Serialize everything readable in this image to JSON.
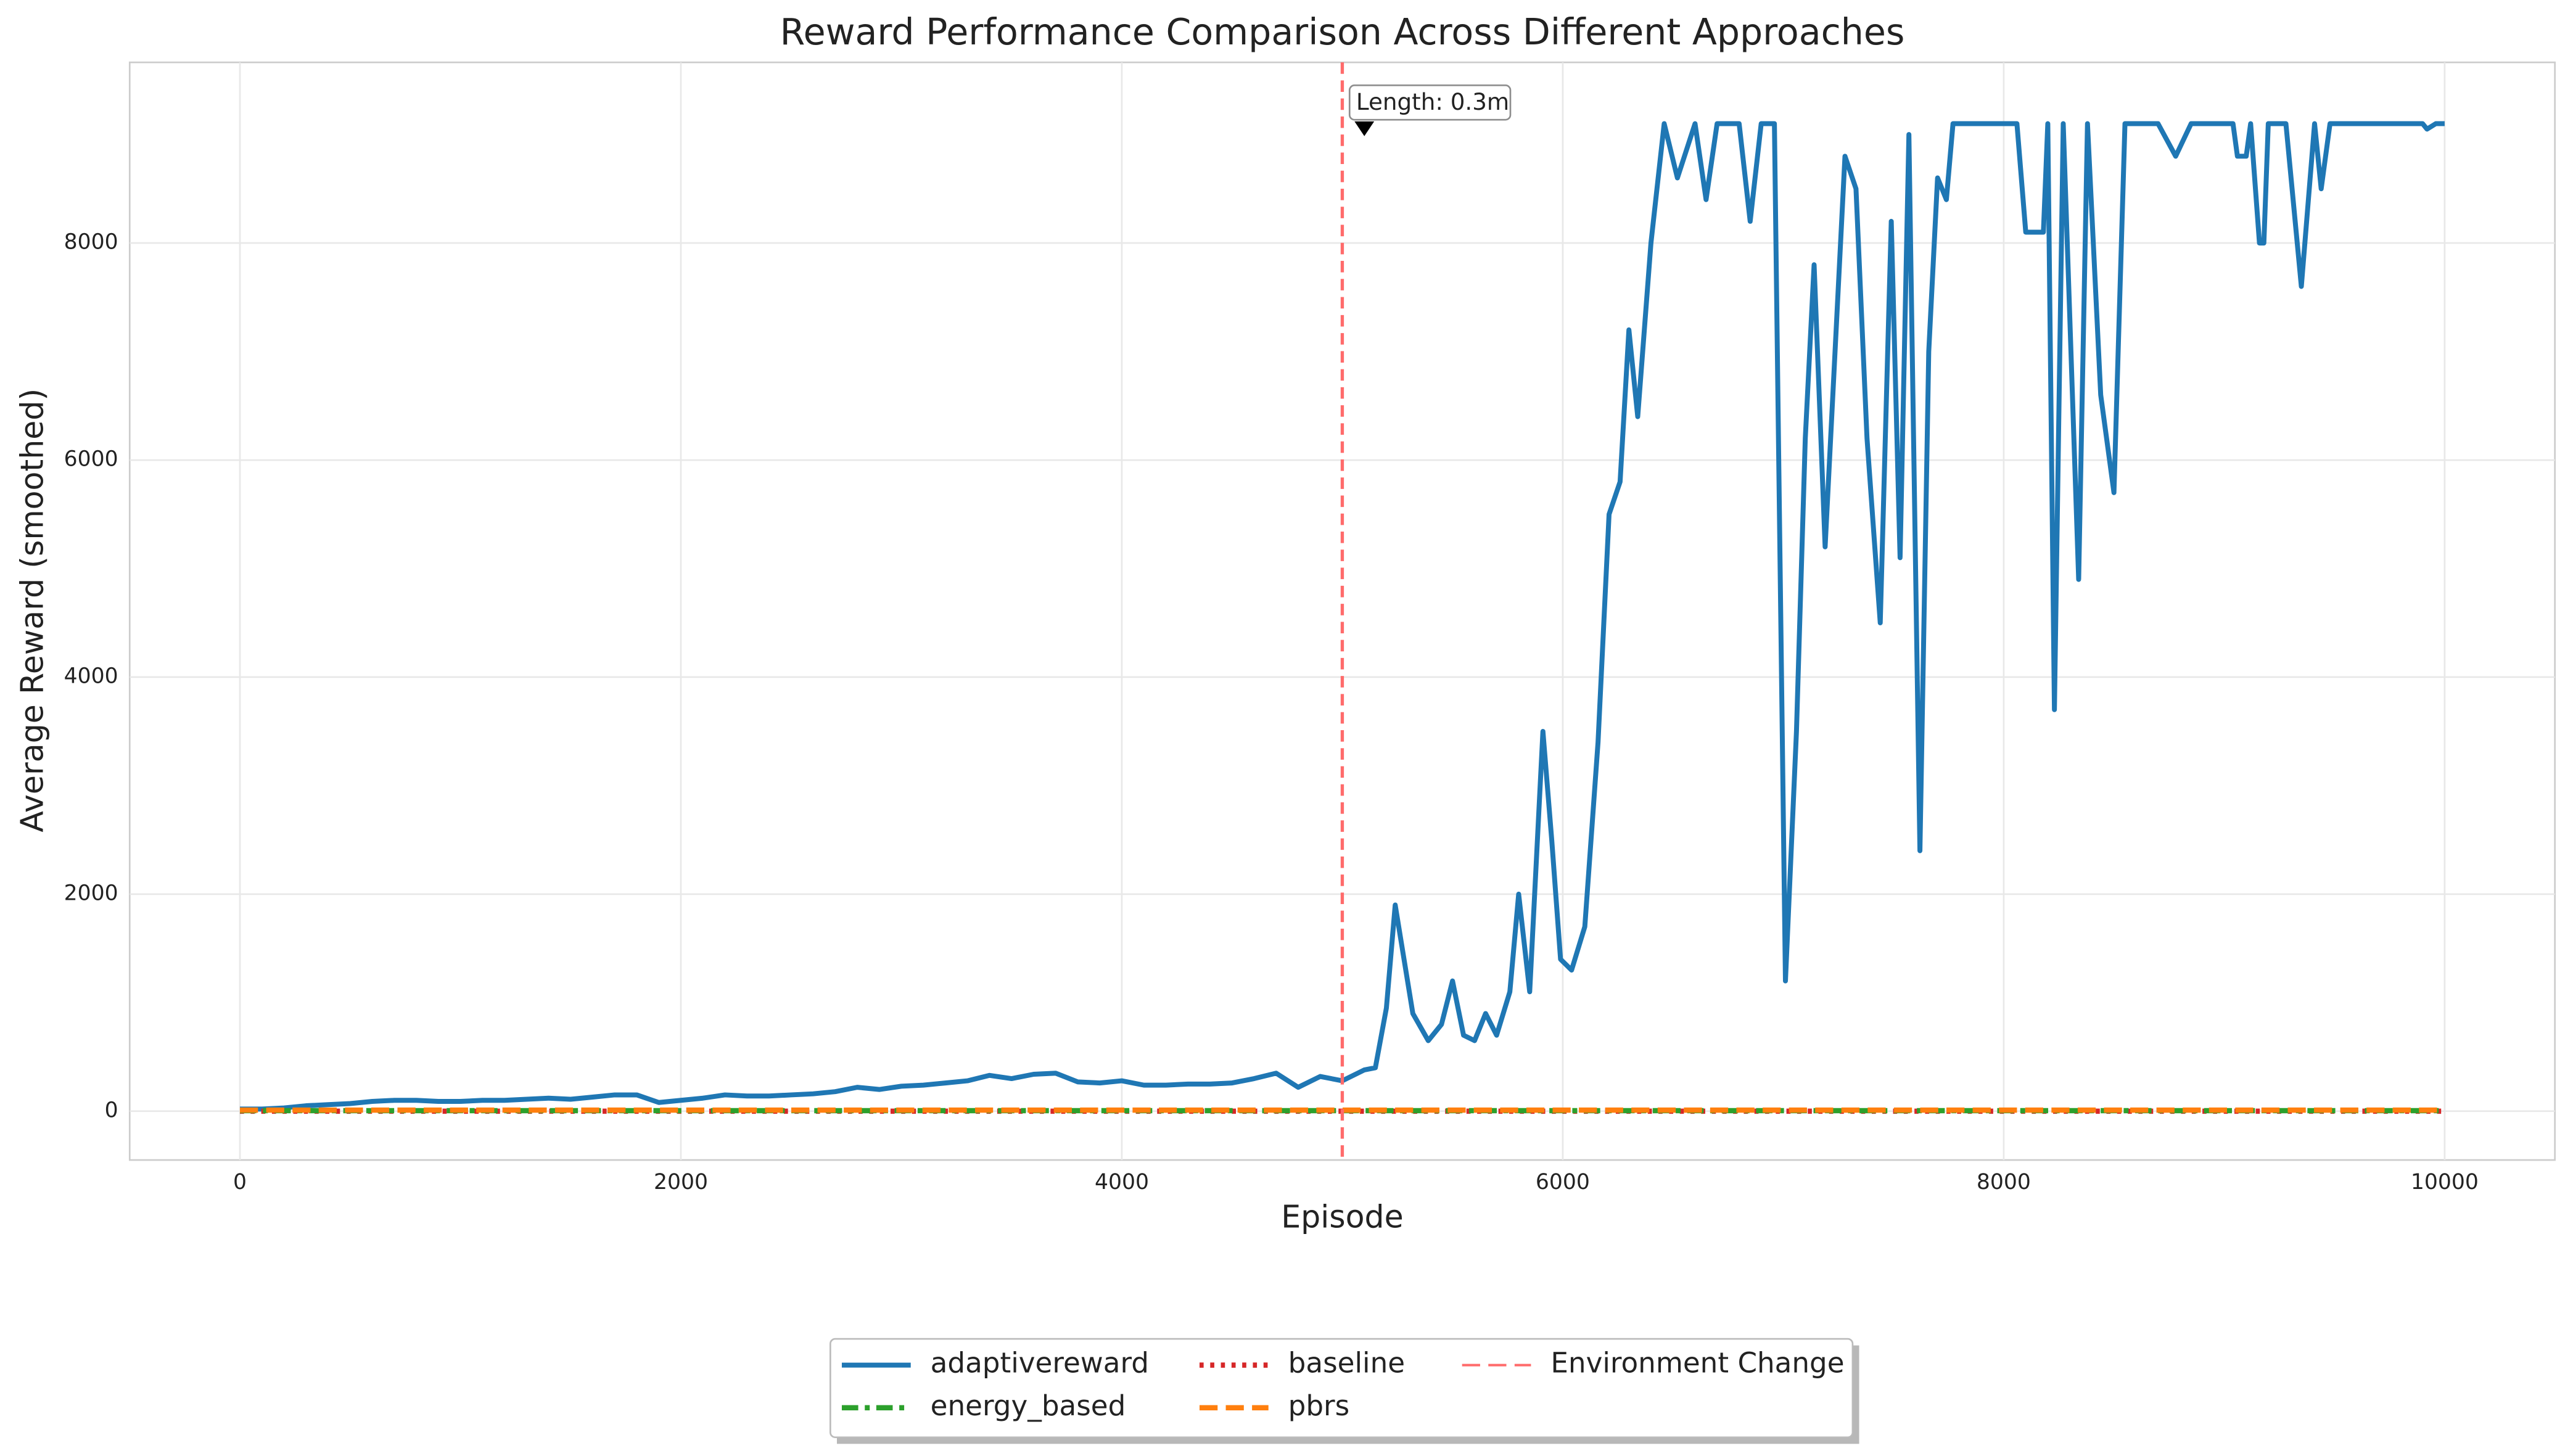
{
  "chart_data": {
    "type": "line",
    "title": "Reward Performance Comparison Across Different Approaches",
    "x_label": "Episode",
    "y_label": "Average Reward (smoothed)",
    "xlim": [
      -500,
      10500
    ],
    "ylim": [
      -450,
      9665
    ],
    "xticks": [
      0,
      2000,
      4000,
      6000,
      8000,
      10000
    ],
    "yticks": [
      0,
      2000,
      4000,
      6000,
      8000
    ],
    "grid": true,
    "legend": "lower center",
    "series": [
      {
        "name": "adaptivereward",
        "color": "#1f77b4",
        "linestyle": "solid",
        "x": [
          0,
          100,
          200,
          300,
          400,
          500,
          600,
          700,
          800,
          900,
          1000,
          1100,
          1200,
          1300,
          1400,
          1500,
          1600,
          1700,
          1800,
          1900,
          2000,
          2100,
          2200,
          2300,
          2400,
          2500,
          2600,
          2700,
          2800,
          2900,
          3000,
          3100,
          3200,
          3300,
          3400,
          3500,
          3600,
          3700,
          3800,
          3900,
          4000,
          4100,
          4200,
          4300,
          4400,
          4500,
          4600,
          4700,
          4800,
          4900,
          5000,
          5100,
          5150,
          5200,
          5240,
          5280,
          5320,
          5390,
          5450,
          5500,
          5550,
          5600,
          5650,
          5700,
          5760,
          5800,
          5850,
          5910,
          5950,
          5990,
          6040,
          6100,
          6160,
          6210,
          6260,
          6300,
          6340,
          6400,
          6460,
          6520,
          6600,
          6650,
          6700,
          6800,
          6850,
          6900,
          6960,
          7010,
          7060,
          7100,
          7140,
          7190,
          7240,
          7280,
          7330,
          7380,
          7440,
          7490,
          7530,
          7570,
          7620,
          7660,
          7700,
          7740,
          7770,
          8060,
          8100,
          8180,
          8200,
          8230,
          8270,
          8340,
          8380,
          8440,
          8500,
          8550,
          8700,
          8780,
          8850,
          9040,
          9060,
          9100,
          9120,
          9160,
          9180,
          9200,
          9280,
          9350,
          9410,
          9440,
          9480,
          9900,
          9920,
          9960,
          10000
        ],
        "values": [
          20,
          20,
          30,
          50,
          60,
          70,
          90,
          100,
          100,
          90,
          90,
          100,
          100,
          110,
          120,
          110,
          130,
          150,
          150,
          80,
          100,
          120,
          150,
          140,
          140,
          150,
          160,
          180,
          220,
          200,
          230,
          240,
          260,
          280,
          330,
          300,
          340,
          350,
          270,
          260,
          280,
          240,
          240,
          250,
          250,
          260,
          300,
          350,
          220,
          320,
          280,
          380,
          400,
          950,
          1900,
          1400,
          900,
          650,
          800,
          1200,
          700,
          650,
          900,
          700,
          1100,
          2000,
          1100,
          3500,
          2500,
          1400,
          1300,
          1700,
          3400,
          5500,
          5800,
          7200,
          6400,
          8000,
          9100,
          8600,
          9100,
          8400,
          9100,
          9100,
          8200,
          9100,
          9100,
          1200,
          3500,
          6200,
          7800,
          5200,
          7200,
          8800,
          8500,
          6200,
          4500,
          8200,
          5100,
          9000,
          2400,
          7000,
          8600,
          8400,
          9100,
          9100,
          8100,
          8100,
          9100,
          3700,
          9100,
          4900,
          9100,
          6600,
          5700,
          9100,
          9100,
          8800,
          9100,
          9100,
          8800,
          8800,
          9100,
          8000,
          8000,
          9100,
          9100,
          7600,
          9100,
          8500,
          9100,
          9100,
          9050,
          9100,
          9100
        ]
      },
      {
        "name": "energy_based",
        "color": "#2ca02c",
        "linestyle": "dashdot",
        "x": [
          0,
          10000
        ],
        "values": [
          5,
          5
        ]
      },
      {
        "name": "baseline",
        "color": "#d62728",
        "linestyle": "dotted",
        "x": [
          0,
          10000
        ],
        "values": [
          0,
          0
        ]
      },
      {
        "name": "pbrs",
        "color": "#ff7f0e",
        "linestyle": "dashed",
        "x": [
          0,
          10000
        ],
        "values": [
          10,
          10
        ]
      }
    ],
    "vlines": [
      {
        "x": 5000,
        "label": "Environment Change",
        "color": "#ff6b6b"
      }
    ],
    "annotations": [
      {
        "text": "Length: 0.3m",
        "x": 5100,
        "y": 9000
      }
    ]
  }
}
